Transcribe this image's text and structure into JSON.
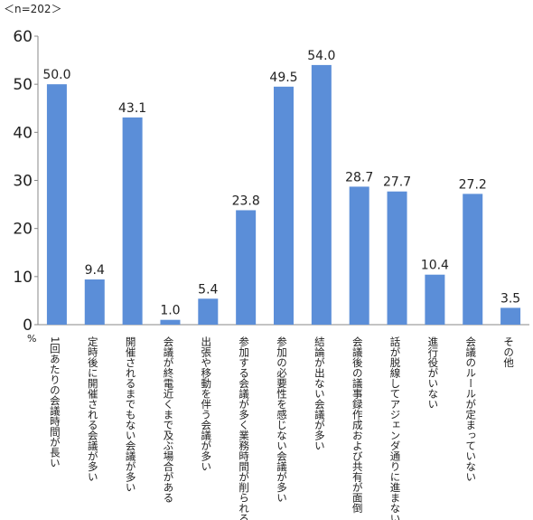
{
  "chart_data": {
    "type": "bar",
    "note": "＜n=202＞",
    "y_unit": "%",
    "categories": [
      "1回あたりの会議時間が長い",
      "定時後に開催される会議が多い",
      "開催されるまでもない会議が多い",
      "会議が終電近くまで及ぶ場合がある",
      "出張や移動を伴う会議が多い",
      "参加する会議が多く業務時間が削られる",
      "参加の必要性を感じない会議が多い",
      "結論が出ない会議が多い",
      "会議後の議事録作成および共有が面倒",
      "話が脱線してアジェンダ通りに進まない",
      "進行役がいない",
      "会議のルールが定まっていない",
      "その他"
    ],
    "values": [
      50.0,
      9.4,
      43.1,
      1.0,
      5.4,
      23.8,
      49.5,
      54.0,
      28.7,
      27.7,
      10.4,
      27.2,
      3.5
    ],
    "value_labels": [
      "50.0",
      "9.4",
      "43.1",
      "1.0",
      "5.4",
      "23.8",
      "49.5",
      "54.0",
      "28.7",
      "27.7",
      "10.4",
      "27.2",
      "3.5"
    ],
    "color": "#5b8ed8",
    "ylim": [
      0,
      60
    ],
    "yticks": [
      0,
      10,
      20,
      30,
      40,
      50,
      60
    ],
    "grid": false
  }
}
